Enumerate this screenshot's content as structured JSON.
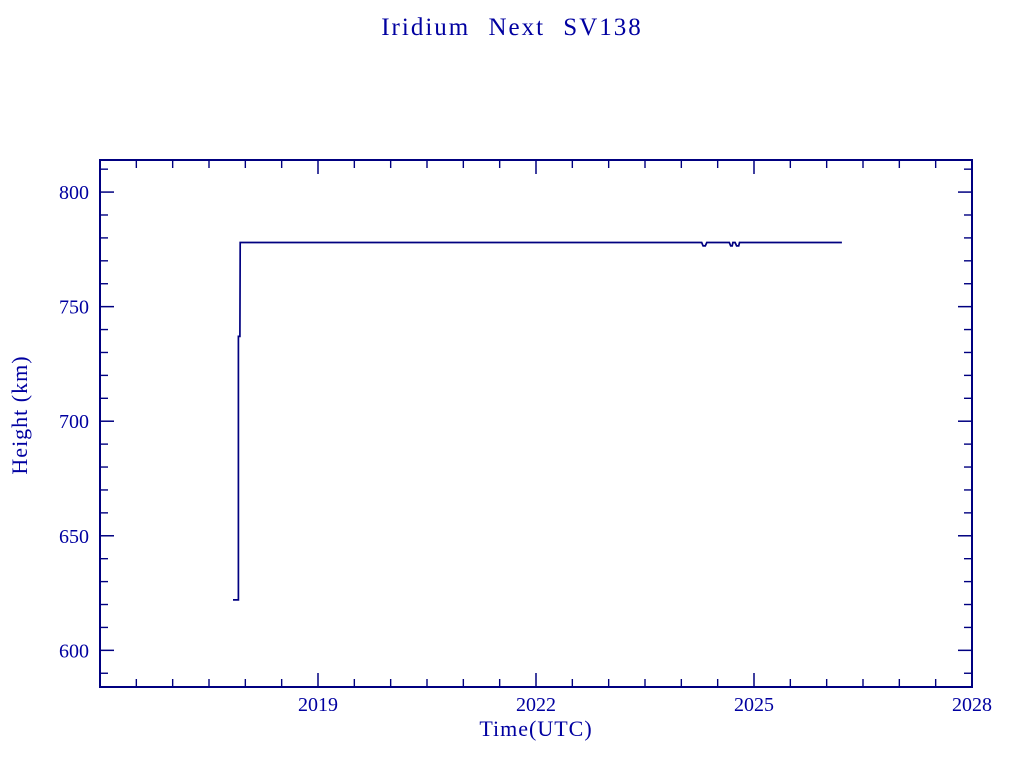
{
  "window": {
    "background": "#ffffff"
  },
  "chart_data": {
    "type": "line",
    "title": "Iridium Next SV138",
    "xlabel": "Time(UTC)",
    "ylabel": "Height (km)",
    "xlim": [
      2016,
      2028
    ],
    "ylim": [
      584,
      814
    ],
    "x_major_ticks": [
      2019,
      2022,
      2025,
      2028
    ],
    "x_major_tick_labels": [
      "2019",
      "2022",
      "2025",
      "2028"
    ],
    "x_minor_step": 0.5,
    "y_major_ticks": [
      600,
      650,
      700,
      750,
      800
    ],
    "y_major_tick_labels": [
      "600",
      "650",
      "700",
      "750",
      "800"
    ],
    "y_minor_step": 10,
    "grid": false,
    "legend": null,
    "ticks_mirrored": true,
    "tick_direction": "in",
    "colors": {
      "line": "#000080",
      "axis": "#000080",
      "text": "#0000A0",
      "background": "#ffffff"
    },
    "series": [
      {
        "name": "height_km",
        "points": [
          [
            2017.83,
            622
          ],
          [
            2017.905,
            622
          ],
          [
            2017.905,
            737
          ],
          [
            2017.925,
            737
          ],
          [
            2017.93,
            778
          ],
          [
            2024.28,
            778
          ],
          [
            2024.3,
            776.5
          ],
          [
            2024.33,
            776.5
          ],
          [
            2024.35,
            778
          ],
          [
            2024.66,
            778
          ],
          [
            2024.68,
            776.5
          ],
          [
            2024.7,
            776.5
          ],
          [
            2024.71,
            778
          ],
          [
            2024.74,
            778
          ],
          [
            2024.76,
            776.5
          ],
          [
            2024.79,
            776.5
          ],
          [
            2024.8,
            778
          ],
          [
            2026.21,
            778
          ]
        ]
      }
    ]
  }
}
